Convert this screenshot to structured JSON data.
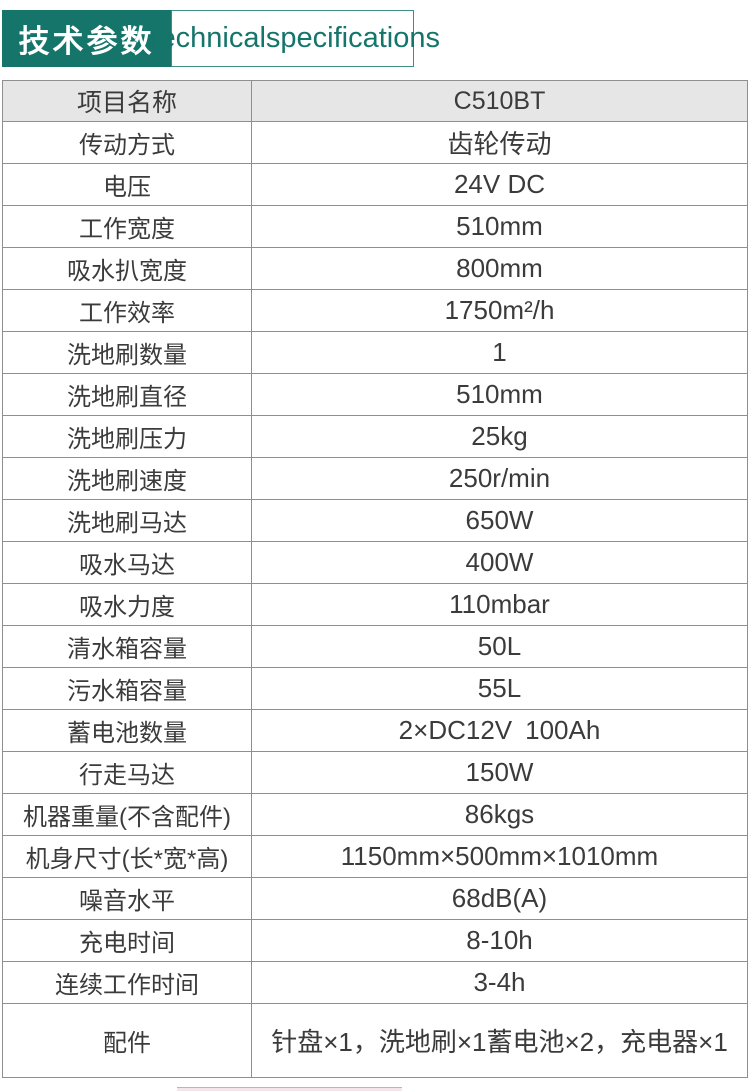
{
  "header": {
    "title_cn": "技术参数",
    "title_en": "Technicalspecifications"
  },
  "table": {
    "columns": [
      "项目名称",
      "C510BT"
    ],
    "rows": [
      {
        "label": "传动方式",
        "value": "齿轮传动"
      },
      {
        "label": "电压",
        "value": "24V DC"
      },
      {
        "label": "工作宽度",
        "value": "510mm"
      },
      {
        "label": "吸水扒宽度",
        "value": "800mm"
      },
      {
        "label": "工作效率",
        "value": "1750m²/h"
      },
      {
        "label": "洗地刷数量",
        "value": "1"
      },
      {
        "label": "洗地刷直径",
        "value": "510mm"
      },
      {
        "label": "洗地刷压力",
        "value": "25kg"
      },
      {
        "label": "洗地刷速度",
        "value": "250r/min"
      },
      {
        "label": "洗地刷马达",
        "value": "650W"
      },
      {
        "label": "吸水马达",
        "value": "400W"
      },
      {
        "label": "吸水力度",
        "value": "110mbar"
      },
      {
        "label": "清水箱容量",
        "value": "50L"
      },
      {
        "label": "污水箱容量",
        "value": "55L"
      },
      {
        "label": "蓄电池数量",
        "value": "2×DC12V 100Ah"
      },
      {
        "label": "行走马达",
        "value": "150W"
      },
      {
        "label": "机器重量(不含配件)",
        "value": "86kgs"
      },
      {
        "label": "机身尺寸(长*宽*高)",
        "value": "1150mm×500mm×1010mm"
      },
      {
        "label": "噪音水平",
        "value": "68dB(A)"
      },
      {
        "label": "充电时间",
        "value": "8-10h"
      },
      {
        "label": "连续工作时间",
        "value": "3-4h"
      },
      {
        "label": "配件",
        "value": "针盘×1，洗地刷×1蓄电池×2，充电器×1",
        "tall": true
      }
    ]
  },
  "colors": {
    "teal": "#15756b",
    "header_row_bg": "#e7e6e6",
    "table_border": "#8f8f8f",
    "text": "#3b3b3b",
    "bottom_strip": "#f4e6eb"
  }
}
